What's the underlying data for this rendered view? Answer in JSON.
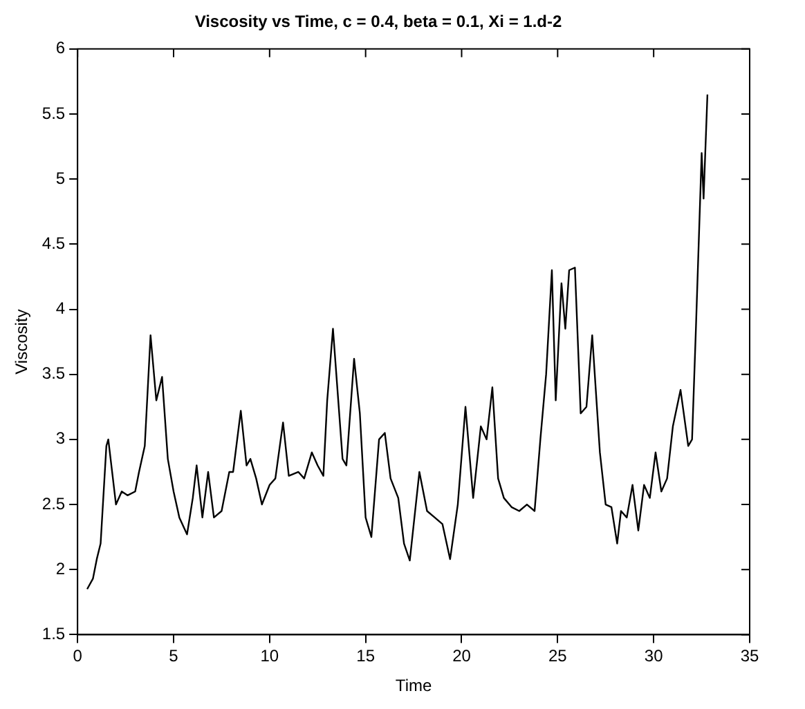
{
  "chart_data": {
    "type": "line",
    "title": "Viscosity vs Time, c = 0.4, beta = 0.1, Xi = 1.d-2",
    "xlabel": "Time",
    "ylabel": "Viscosity",
    "xlim": [
      0,
      35
    ],
    "xticks": [
      0,
      5,
      10,
      15,
      20,
      25,
      30,
      35
    ],
    "ylim": [
      1.5,
      6
    ],
    "yticks": [
      1.5,
      2,
      2.5,
      3,
      3.5,
      4,
      4.5,
      5,
      5.5,
      6
    ],
    "grid": false,
    "legend": false,
    "marker": "none",
    "line_style": "solid",
    "series": [
      {
        "color": "#000000",
        "x": [
          0.5,
          0.8,
          1.0,
          1.2,
          1.5,
          1.6,
          1.8,
          2.0,
          2.3,
          2.6,
          3.0,
          3.2,
          3.5,
          3.8,
          4.1,
          4.4,
          4.7,
          5.0,
          5.3,
          5.7,
          6.0,
          6.2,
          6.5,
          6.8,
          7.1,
          7.5,
          7.9,
          8.1,
          8.5,
          8.8,
          9.0,
          9.3,
          9.6,
          10.0,
          10.3,
          10.7,
          11.0,
          11.5,
          11.8,
          12.2,
          12.5,
          12.8,
          13.0,
          13.3,
          13.8,
          14.0,
          14.4,
          14.7,
          15.0,
          15.3,
          15.7,
          16.0,
          16.3,
          16.7,
          17.0,
          17.3,
          17.8,
          18.2,
          18.6,
          19.0,
          19.4,
          19.8,
          20.2,
          20.6,
          21.0,
          21.3,
          21.6,
          21.9,
          22.2,
          22.6,
          23.0,
          23.4,
          23.8,
          24.1,
          24.4,
          24.7,
          24.9,
          25.2,
          25.4,
          25.6,
          25.9,
          26.2,
          26.5,
          26.8,
          27.2,
          27.5,
          27.8,
          28.1,
          28.3,
          28.6,
          28.9,
          29.2,
          29.5,
          29.8,
          30.1,
          30.4,
          30.7,
          31.0,
          31.4,
          31.8,
          32.0,
          32.2,
          32.5,
          32.6,
          32.8
        ],
        "values": [
          1.85,
          1.93,
          2.08,
          2.2,
          2.95,
          3.0,
          2.75,
          2.5,
          2.6,
          2.57,
          2.6,
          2.75,
          2.95,
          3.8,
          3.3,
          3.48,
          2.85,
          2.6,
          2.4,
          2.27,
          2.55,
          2.8,
          2.4,
          2.75,
          2.4,
          2.45,
          2.75,
          2.75,
          3.22,
          2.8,
          2.85,
          2.7,
          2.5,
          2.65,
          2.7,
          3.13,
          2.72,
          2.75,
          2.7,
          2.9,
          2.8,
          2.72,
          3.3,
          3.85,
          2.85,
          2.8,
          3.62,
          3.2,
          2.4,
          2.25,
          3.0,
          3.05,
          2.7,
          2.55,
          2.2,
          2.07,
          2.75,
          2.45,
          2.4,
          2.35,
          2.08,
          2.5,
          3.25,
          2.55,
          3.1,
          3.0,
          3.4,
          2.7,
          2.55,
          2.48,
          2.45,
          2.5,
          2.45,
          3.0,
          3.5,
          4.3,
          3.3,
          4.2,
          3.85,
          4.3,
          4.32,
          3.2,
          3.25,
          3.8,
          2.9,
          2.5,
          2.48,
          2.2,
          2.45,
          2.4,
          2.65,
          2.3,
          2.65,
          2.55,
          2.9,
          2.6,
          2.7,
          3.1,
          3.38,
          2.95,
          3.0,
          3.85,
          5.2,
          4.85,
          5.65
        ]
      }
    ]
  }
}
